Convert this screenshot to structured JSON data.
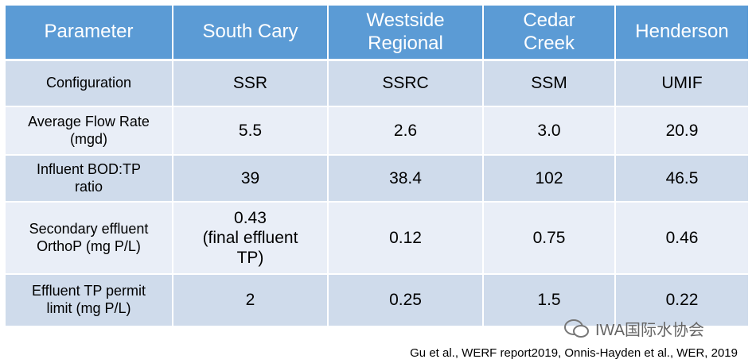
{
  "table": {
    "header": [
      "Parameter",
      "South Cary",
      "Westside\nRegional",
      "Cedar\nCreek",
      "Henderson"
    ],
    "rows": [
      [
        "Configuration",
        "SSR",
        "SSRC",
        "SSM",
        "UMIF"
      ],
      [
        "Average Flow Rate\n(mgd)",
        "5.5",
        "2.6",
        "3.0",
        "20.9"
      ],
      [
        "Influent BOD:TP\nratio",
        "39",
        "38.4",
        "102",
        "46.5"
      ],
      [
        "Secondary effluent\nOrthoP (mg P/L)",
        "0.43\n(final effluent\nTP)",
        "0.12",
        "0.75",
        "0.46"
      ],
      [
        "Effluent TP permit\nlimit (mg P/L)",
        "2",
        "0.25",
        "1.5",
        "0.22"
      ]
    ]
  },
  "watermark": "IWA国际水协会",
  "citation": "Gu et al., WERF report2019, Onnis-Hayden et al., WER, 2019"
}
